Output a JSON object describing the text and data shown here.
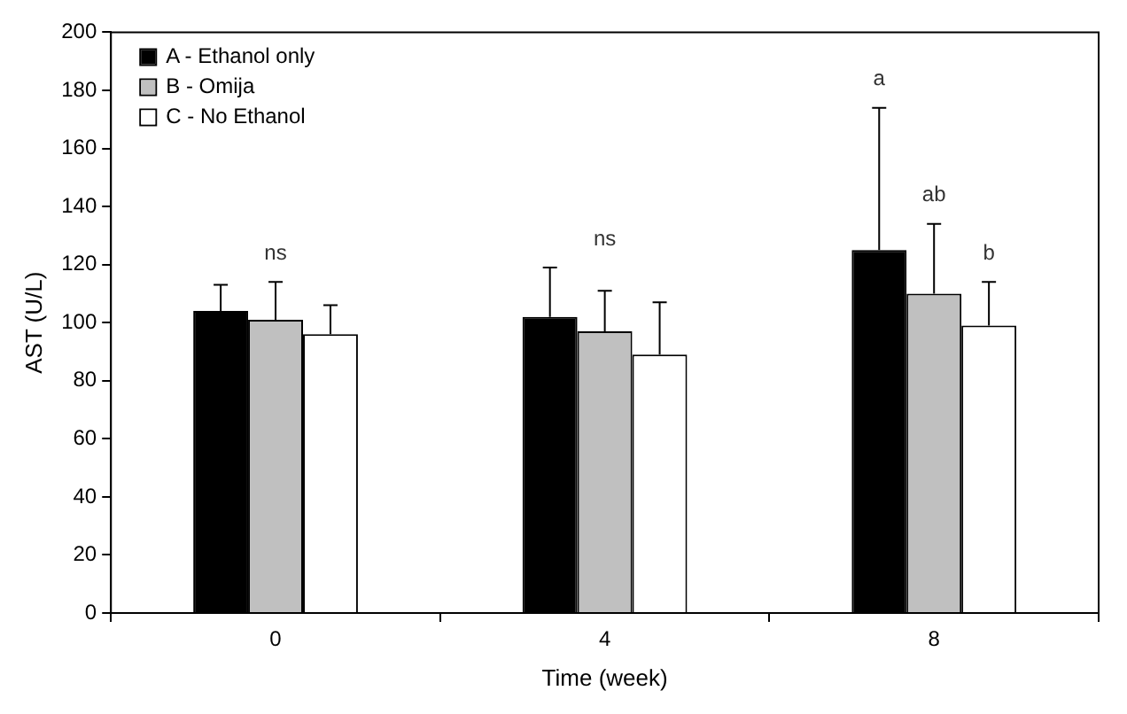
{
  "chart_data": {
    "type": "bar",
    "xlabel": "Time (week)",
    "ylabel": "AST (U/L)",
    "categories": [
      "0",
      "4",
      "8"
    ],
    "series": [
      {
        "name": "A - Ethanol only",
        "color": "#000000",
        "values": [
          104,
          102,
          125
        ],
        "errors": [
          9,
          17,
          49
        ]
      },
      {
        "name": "B - Omija",
        "color": "#c0c0c0",
        "values": [
          101,
          97,
          110
        ],
        "errors": [
          13,
          14,
          24
        ]
      },
      {
        "name": "C - No Ethanol",
        "color": "#ffffff",
        "values": [
          96,
          89,
          99
        ],
        "errors": [
          10,
          18,
          15
        ]
      }
    ],
    "ylim": [
      0,
      200
    ],
    "yticks": [
      0,
      20,
      40,
      60,
      80,
      100,
      120,
      140,
      160,
      180,
      200
    ],
    "annotations": [
      "ns",
      "ns",
      "a",
      "ab",
      "b"
    ],
    "grid": false,
    "legend": "top left"
  }
}
